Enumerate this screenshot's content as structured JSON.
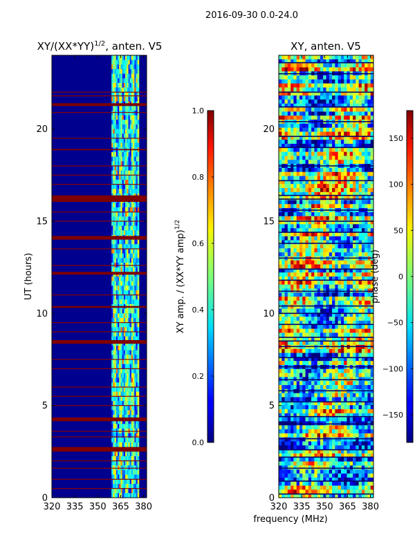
{
  "suptitle": "2016-09-30 0.0-24.0",
  "xlabel": "frequency (MHz)",
  "colors": {
    "bg_band": "#00008f",
    "line": "#000000",
    "fg": "#000000"
  },
  "chart_data": [
    {
      "type": "heatmap",
      "title_prefix": "XY/(XX*YY)",
      "title_sup": "1/2",
      "title_suffix": ", anten. V5",
      "ylabel": "UT (hours)",
      "xlim": [
        320,
        382
      ],
      "ylim": [
        0,
        24
      ],
      "xticks": [
        "320",
        "335",
        "350",
        "365",
        "380"
      ],
      "xtick_values": [
        320,
        335,
        350,
        365,
        380
      ],
      "yticks": [
        "0",
        "5",
        "10",
        "15",
        "20"
      ],
      "ytick_values": [
        0,
        5,
        10,
        15,
        20
      ],
      "colorbar": {
        "label_prefix": "XY amp. / (XX*YY amp)",
        "label_sup": "1/2",
        "range": [
          0.0,
          1.0
        ],
        "ticks": [
          "0.0",
          "0.2",
          "0.4",
          "0.6",
          "0.8",
          "1.0"
        ],
        "tick_values": [
          0.0,
          0.2,
          0.4,
          0.6,
          0.8,
          1.0
        ]
      },
      "active_band_mhz": [
        359,
        377
      ],
      "saturated_rows_hours": [
        [
          2.5,
          2.75
        ],
        [
          4.15,
          4.35
        ],
        [
          8.35,
          8.55
        ],
        [
          10.3,
          10.4
        ],
        [
          12.1,
          12.25
        ],
        [
          14.0,
          14.2
        ],
        [
          16.05,
          16.4
        ],
        [
          18.85,
          18.92
        ],
        [
          21.25,
          21.4
        ]
      ],
      "thin_rows_hours": [
        0.5,
        1.0,
        1.6,
        2.0,
        3.3,
        3.6,
        5.0,
        5.5,
        6.0,
        7.0,
        7.5,
        9.0,
        9.5,
        11.0,
        12.6,
        13.5,
        15.0,
        15.5,
        17.0,
        17.5,
        18.0,
        19.5,
        20.9,
        21.8,
        22.0
      ]
    },
    {
      "type": "heatmap",
      "title": "XY, anten. V5",
      "ylabel": "phase (deg)",
      "xlim": [
        320,
        382
      ],
      "ylim": [
        0,
        24
      ],
      "xticks": [
        "320",
        "335",
        "350",
        "365",
        "380"
      ],
      "xtick_values": [
        320,
        335,
        350,
        365,
        380
      ],
      "yticks": [
        "0",
        "5",
        "10",
        "15",
        "20"
      ],
      "ytick_values": [
        0,
        5,
        10,
        15,
        20
      ],
      "colorbar": {
        "range": [
          -180,
          180
        ],
        "ticks": [
          "−150",
          "−100",
          "−50",
          "0",
          "50",
          "100",
          "150"
        ],
        "tick_values": [
          -150,
          -100,
          -50,
          0,
          50,
          100,
          150
        ]
      },
      "dark_rows_hours": [
        0.2,
        0.9,
        1.6,
        2.2,
        2.6,
        3.2,
        4.0,
        4.4,
        5.2,
        5.8,
        6.4,
        7.1,
        7.6,
        8.2,
        8.5,
        8.7,
        9.4,
        10.0,
        10.4,
        11.2,
        11.8,
        12.4,
        13.0,
        13.8,
        14.4,
        15.0,
        15.6,
        16.2,
        16.4,
        17.2,
        18.0,
        19.0,
        19.6,
        20.4,
        21.2,
        22.0,
        23.0,
        23.6
      ]
    }
  ]
}
